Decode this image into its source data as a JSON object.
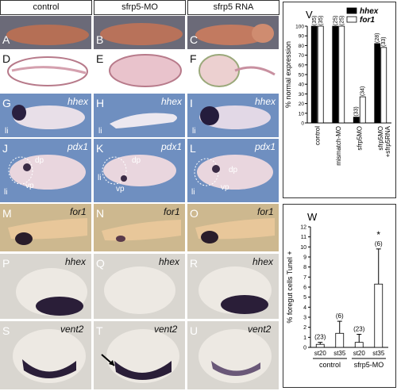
{
  "columns": [
    "control",
    "sfrp5-MO",
    "sfrp5 RNA"
  ],
  "rows": [
    {
      "letters": [
        "A",
        "B",
        "C"
      ],
      "genes": [
        "",
        "",
        ""
      ]
    },
    {
      "letters": [
        "D",
        "E",
        "F"
      ],
      "genes": [
        "",
        "",
        ""
      ]
    },
    {
      "letters": [
        "G",
        "H",
        "I"
      ],
      "genes": [
        "hhex",
        "hhex",
        "hhex"
      ],
      "extra": [
        "li",
        "li",
        "li"
      ]
    },
    {
      "letters": [
        "J",
        "K",
        "L"
      ],
      "genes": [
        "pdx1",
        "pdx1",
        "pdx1"
      ]
    },
    {
      "letters": [
        "M",
        "N",
        "O"
      ],
      "genes": [
        "for1",
        "for1",
        "for1"
      ]
    },
    {
      "letters": [
        "P",
        "Q",
        "R"
      ],
      "genes": [
        "hhex",
        "hhex",
        "hhex"
      ]
    },
    {
      "letters": [
        "S",
        "T",
        "U"
      ],
      "genes": [
        "vent2",
        "vent2",
        "vent2"
      ]
    }
  ],
  "pdx_labels": {
    "dp": "dp",
    "vp": "vp",
    "li": "li"
  },
  "chart_data": [
    {
      "panel": "V",
      "type": "bar",
      "ylabel": "% normal expression",
      "ylim": [
        0,
        100
      ],
      "yticks": [
        "0",
        "10",
        "20",
        "30",
        "40",
        "50",
        "60",
        "70",
        "80",
        "90",
        "100"
      ],
      "categories": [
        "control",
        "mismatch-MO",
        "sfrp5MO",
        "sfrp5MO\n+sfrp5RNA"
      ],
      "series": [
        {
          "name": "hhex",
          "color": "#000000",
          "values": [
            100,
            100,
            6,
            82
          ],
          "n": [
            "(35)",
            "(25)",
            "(33)",
            "(28)"
          ]
        },
        {
          "name": "for1",
          "color": "#ffffff",
          "values": [
            100,
            100,
            27,
            78
          ],
          "n": [
            "(35)",
            "(25)",
            "(34)",
            "(33)"
          ]
        }
      ]
    },
    {
      "panel": "W",
      "type": "bar",
      "ylabel": "% foregut cells Tunel +",
      "ylim": [
        0,
        12
      ],
      "yticks": [
        "0",
        "1",
        "2",
        "3",
        "4",
        "5",
        "6",
        "7",
        "8",
        "9",
        "10",
        "11",
        "12"
      ],
      "categories": [
        "st20",
        "st35",
        "st20",
        "st35"
      ],
      "groups": [
        "control",
        "sfrp5-MO"
      ],
      "values": [
        0.3,
        1.4,
        0.5,
        6.3
      ],
      "errors": [
        0.2,
        1.2,
        0.8,
        3.5
      ],
      "n": [
        "(23)",
        "(6)",
        "(23)",
        "(6)"
      ],
      "annotation": "*"
    }
  ]
}
